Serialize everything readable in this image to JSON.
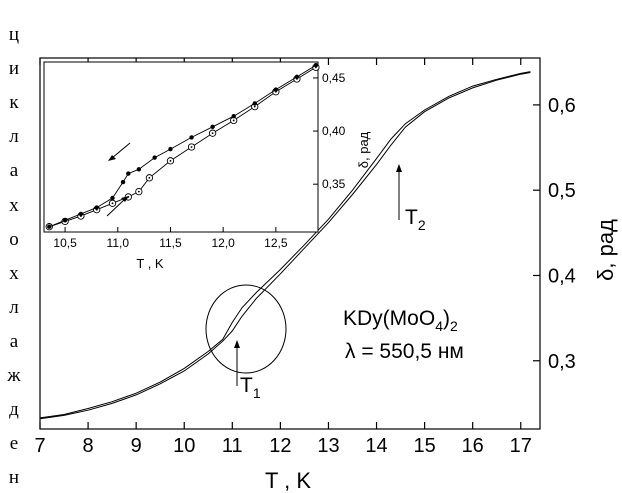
{
  "side_caption": [
    "ц",
    "и",
    "к",
    "л",
    "а",
    "х",
    "о",
    "х",
    "л",
    "а",
    "ж",
    "д",
    "е",
    "н"
  ],
  "chart_data": [
    {
      "type": "line",
      "role": "main",
      "xlabel": "T , K",
      "ylabel": "δ, рад",
      "xlim": [
        7,
        17.4
      ],
      "ylim": [
        0.22,
        0.655
      ],
      "x_ticks": [
        7,
        8,
        9,
        10,
        11,
        12,
        13,
        14,
        15,
        16,
        17
      ],
      "x_tick_labels": [
        "7",
        "8",
        "9",
        "10",
        "11",
        "12",
        "13",
        "14",
        "15",
        "16",
        "17"
      ],
      "y_ticks": [
        0.3,
        0.4,
        0.5,
        0.6
      ],
      "y_tick_labels": [
        "0,3",
        "0,4",
        "0,5",
        "0,6"
      ],
      "y_axis_side": "right",
      "annotations": {
        "compound_pre": "KDy(MoO",
        "compound_sub1": "4",
        "compound_post": ")",
        "compound_sub2": "2",
        "lambda_text": "λ = 550,5 нм",
        "t1_main": "T",
        "t1_sub": "1",
        "t2_main": "T",
        "t2_sub": "2"
      },
      "series": [
        {
          "x": [
            7.0,
            7.5,
            8.0,
            8.5,
            9.0,
            9.5,
            10.0,
            10.5,
            10.8,
            11.0,
            11.2,
            11.5,
            12.0,
            12.5,
            13.0,
            13.5,
            14.0,
            14.3,
            14.6,
            15.0,
            15.5,
            16.0,
            16.5,
            17.0,
            17.2
          ],
          "y": [
            0.232,
            0.236,
            0.242,
            0.25,
            0.26,
            0.273,
            0.288,
            0.308,
            0.323,
            0.335,
            0.352,
            0.373,
            0.402,
            0.432,
            0.462,
            0.495,
            0.53,
            0.553,
            0.574,
            0.592,
            0.608,
            0.62,
            0.629,
            0.636,
            0.638
          ]
        },
        {
          "x": [
            7.0,
            7.5,
            8.0,
            8.5,
            9.0,
            9.5,
            10.0,
            10.5,
            10.8,
            11.0,
            11.2,
            11.5,
            12.0,
            12.5,
            13.0,
            13.5,
            14.0,
            14.3,
            14.6,
            15.0,
            15.5,
            16.0,
            16.5,
            17.0,
            17.2
          ],
          "y": [
            0.233,
            0.237,
            0.244,
            0.252,
            0.262,
            0.275,
            0.291,
            0.311,
            0.325,
            0.345,
            0.362,
            0.38,
            0.407,
            0.436,
            0.466,
            0.5,
            0.537,
            0.56,
            0.578,
            0.594,
            0.61,
            0.622,
            0.63,
            0.637,
            0.639
          ]
        }
      ],
      "circle_annotation": {
        "x": 11.3,
        "y": 0.345
      }
    },
    {
      "type": "line",
      "role": "inset",
      "xlabel": "T , K",
      "ylabel": "δ, рад",
      "xlim": [
        10.3,
        12.9
      ],
      "ylim": [
        0.305,
        0.465
      ],
      "x_ticks": [
        10.5,
        11.0,
        11.5,
        12.0,
        12.5
      ],
      "x_tick_labels": [
        "10,5",
        "11,0",
        "11,5",
        "12,0",
        "12,5"
      ],
      "y_ticks": [
        0.35,
        0.4,
        0.45
      ],
      "y_tick_labels": [
        "0,35",
        "0,40",
        "0,45"
      ],
      "y_axis_side": "right",
      "series": [
        {
          "marker": "circle",
          "x": [
            10.35,
            10.5,
            10.65,
            10.8,
            10.95,
            11.1,
            11.2,
            11.3,
            11.5,
            11.7,
            11.9,
            12.1,
            12.3,
            12.5,
            12.7,
            12.88
          ],
          "y": [
            0.31,
            0.315,
            0.32,
            0.326,
            0.332,
            0.338,
            0.343,
            0.356,
            0.372,
            0.385,
            0.398,
            0.41,
            0.423,
            0.437,
            0.449,
            0.46
          ]
        },
        {
          "marker": "filled",
          "x": [
            10.35,
            10.5,
            10.65,
            10.8,
            10.95,
            11.05,
            11.1,
            11.2,
            11.35,
            11.5,
            11.7,
            11.9,
            12.1,
            12.3,
            12.5,
            12.7,
            12.88
          ],
          "y": [
            0.31,
            0.316,
            0.322,
            0.328,
            0.337,
            0.352,
            0.36,
            0.364,
            0.375,
            0.383,
            0.394,
            0.404,
            0.414,
            0.426,
            0.439,
            0.451,
            0.462
          ]
        }
      ]
    }
  ]
}
